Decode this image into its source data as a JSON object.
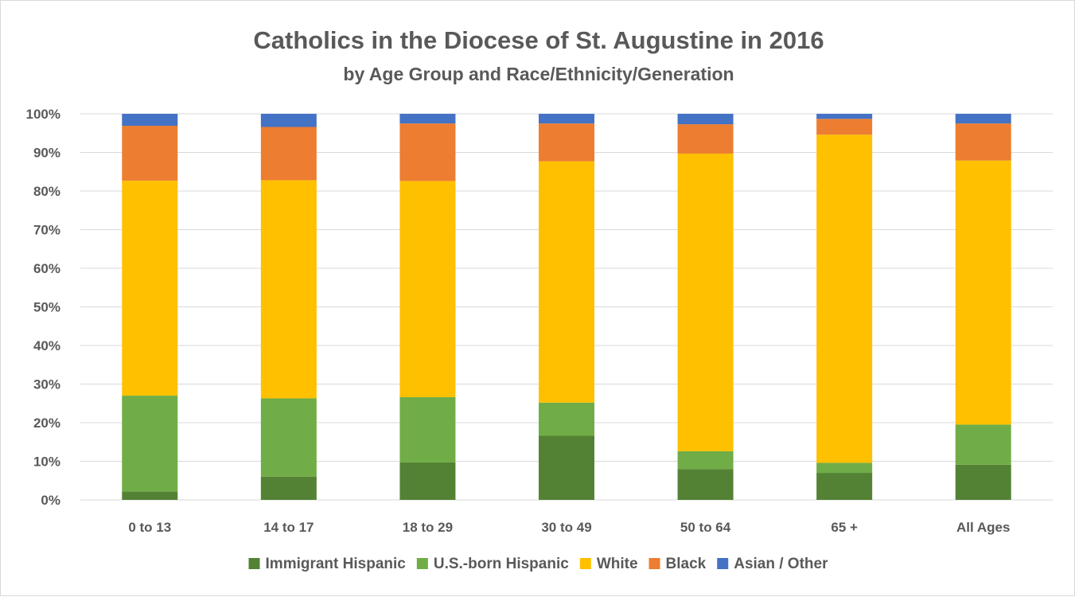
{
  "chart_data": {
    "type": "bar",
    "stacked": true,
    "title": "Catholics in the Diocese of St. Augustine in 2016",
    "subtitle": "by Age Group and Race/Ethnicity/Generation",
    "xlabel": "",
    "ylabel": "",
    "ylim": [
      0,
      100
    ],
    "y_ticks": [
      "0%",
      "10%",
      "20%",
      "30%",
      "40%",
      "50%",
      "60%",
      "70%",
      "80%",
      "90%",
      "100%"
    ],
    "grid": true,
    "legend_position": "bottom",
    "categories": [
      "0 to 13",
      "14 to 17",
      "18 to 29",
      "30 to 49",
      "50 to 64",
      "65 +",
      "All Ages"
    ],
    "series": [
      {
        "name": "Immigrant Hispanic",
        "color": "#548235",
        "values": [
          2.2,
          6.0,
          9.7,
          16.6,
          8.0,
          7.0,
          9.1
        ]
      },
      {
        "name": "U.S.-born Hispanic",
        "color": "#70AD47",
        "values": [
          24.8,
          20.3,
          16.9,
          8.6,
          4.6,
          2.6,
          10.4
        ]
      },
      {
        "name": "White",
        "color": "#FFC000",
        "values": [
          55.7,
          56.5,
          56.0,
          62.5,
          77.1,
          85.0,
          68.4
        ]
      },
      {
        "name": "Black",
        "color": "#ED7D31",
        "values": [
          14.2,
          13.8,
          14.9,
          9.8,
          7.6,
          4.1,
          9.6
        ]
      },
      {
        "name": "Asian / Other",
        "color": "#4472C4",
        "values": [
          3.1,
          3.4,
          2.5,
          2.5,
          2.7,
          1.3,
          2.5
        ]
      }
    ]
  }
}
